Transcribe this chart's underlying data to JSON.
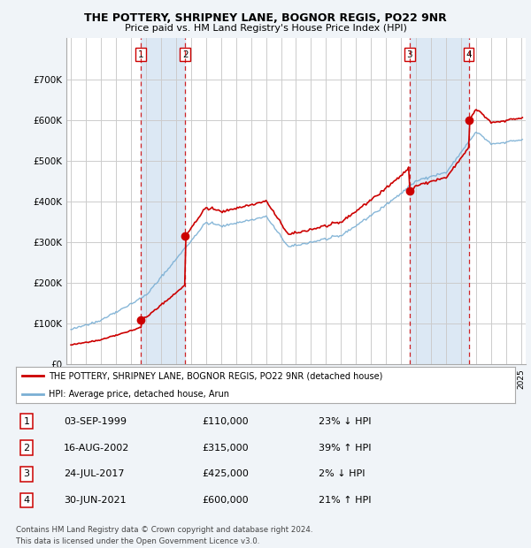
{
  "title": "THE POTTERY, SHRIPNEY LANE, BOGNOR REGIS, PO22 9NR",
  "subtitle": "Price paid vs. HM Land Registry's House Price Index (HPI)",
  "red_label": "THE POTTERY, SHRIPNEY LANE, BOGNOR REGIS, PO22 9NR (detached house)",
  "blue_label": "HPI: Average price, detached house, Arun",
  "footer": "Contains HM Land Registry data © Crown copyright and database right 2024.\nThis data is licensed under the Open Government Licence v3.0.",
  "transactions": [
    {
      "num": 1,
      "date": "03-SEP-1999",
      "price": 110000,
      "pct": "23%",
      "dir": "↓",
      "year": 1999.67
    },
    {
      "num": 2,
      "date": "16-AUG-2002",
      "price": 315000,
      "pct": "39%",
      "dir": "↑",
      "year": 2002.62
    },
    {
      "num": 3,
      "date": "24-JUL-2017",
      "price": 425000,
      "pct": "2%",
      "dir": "↓",
      "year": 2017.56
    },
    {
      "num": 4,
      "date": "30-JUN-2021",
      "price": 600000,
      "pct": "21%",
      "dir": "↑",
      "year": 2021.5
    }
  ],
  "ylim": [
    0,
    800000
  ],
  "yticks": [
    0,
    100000,
    200000,
    300000,
    400000,
    500000,
    600000,
    700000
  ],
  "ytick_labels": [
    "£0",
    "£100K",
    "£200K",
    "£300K",
    "£400K",
    "£500K",
    "£600K",
    "£700K"
  ],
  "red_color": "#cc0000",
  "blue_color": "#7aafd4",
  "vline_color": "#cc0000",
  "dot_color": "#cc0000",
  "grid_color": "#cccccc",
  "bg_color": "#f0f4f8",
  "plot_bg": "#ffffff",
  "highlight_bg": "#dce8f4"
}
